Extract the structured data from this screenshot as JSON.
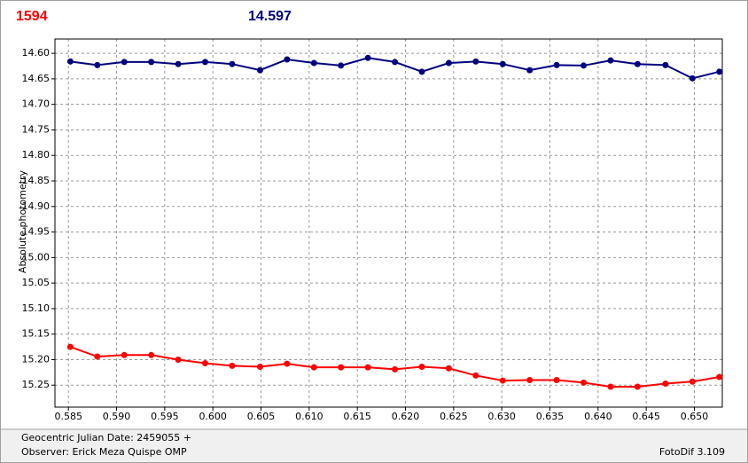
{
  "chart_data": {
    "type": "line",
    "y_label": "Absolute photometry",
    "invert_y": true,
    "grid": true,
    "xlim": [
      0.5836,
      0.6529
    ],
    "ylim": [
      14.572,
      15.293
    ],
    "xticks": [
      0.585,
      {
        "value": 0.59,
        "label": "0.590"
      },
      0.595,
      {
        "value": 0.6,
        "label": "0.600"
      },
      0.605,
      {
        "value": 0.61,
        "label": "0.610"
      },
      0.615,
      {
        "value": 0.62,
        "label": "0.620"
      },
      0.625,
      {
        "value": 0.63,
        "label": "0.630"
      },
      0.635,
      {
        "value": 0.64,
        "label": "0.640"
      },
      0.645,
      {
        "value": 0.65,
        "label": "0.650"
      }
    ],
    "yticks": [
      {
        "value": 14.6,
        "label": "14.60"
      },
      14.65,
      {
        "value": 14.7,
        "label": "14.70"
      },
      14.75,
      {
        "value": 14.8,
        "label": "14.80"
      },
      14.85,
      {
        "value": 14.9,
        "label": "14.90"
      },
      14.95,
      {
        "value": 15.0,
        "label": "15.00"
      },
      15.05,
      {
        "value": 15.1,
        "label": "15.10"
      },
      15.15,
      {
        "value": 15.2,
        "label": "15.20"
      },
      15.25
    ],
    "x": [
      0.5852,
      0.588,
      0.5908,
      0.5936,
      0.5964,
      0.5992,
      0.602,
      0.6049,
      0.6077,
      0.6105,
      0.6133,
      0.6161,
      0.6189,
      0.6217,
      0.6245,
      0.6273,
      0.6301,
      0.6329,
      0.6357,
      0.6385,
      0.6413,
      0.6441,
      0.647,
      0.6498,
      0.6526
    ],
    "series": [
      {
        "name": "1594",
        "color": "#ff0000",
        "values": [
          15.175,
          15.194,
          15.191,
          15.191,
          15.2,
          15.207,
          15.212,
          15.214,
          15.208,
          15.215,
          15.215,
          15.215,
          15.219,
          15.214,
          15.217,
          15.231,
          15.241,
          15.24,
          15.24,
          15.245,
          15.253,
          15.253,
          15.247,
          15.243,
          15.234
        ]
      },
      {
        "name": "14.597",
        "color": "#00007f",
        "values": [
          14.616,
          14.623,
          14.617,
          14.617,
          14.621,
          14.617,
          14.621,
          14.633,
          14.612,
          14.619,
          14.624,
          14.609,
          14.617,
          14.636,
          14.619,
          14.616,
          14.621,
          14.633,
          14.623,
          14.624,
          14.614,
          14.621,
          14.623,
          14.649,
          14.636
        ]
      }
    ]
  },
  "footer": {
    "julian_date": "Geocentric Julian Date: 2459055 +",
    "observer": "Observer: Erick Meza Quispe OMP",
    "software": "FotoDif 3.109"
  }
}
